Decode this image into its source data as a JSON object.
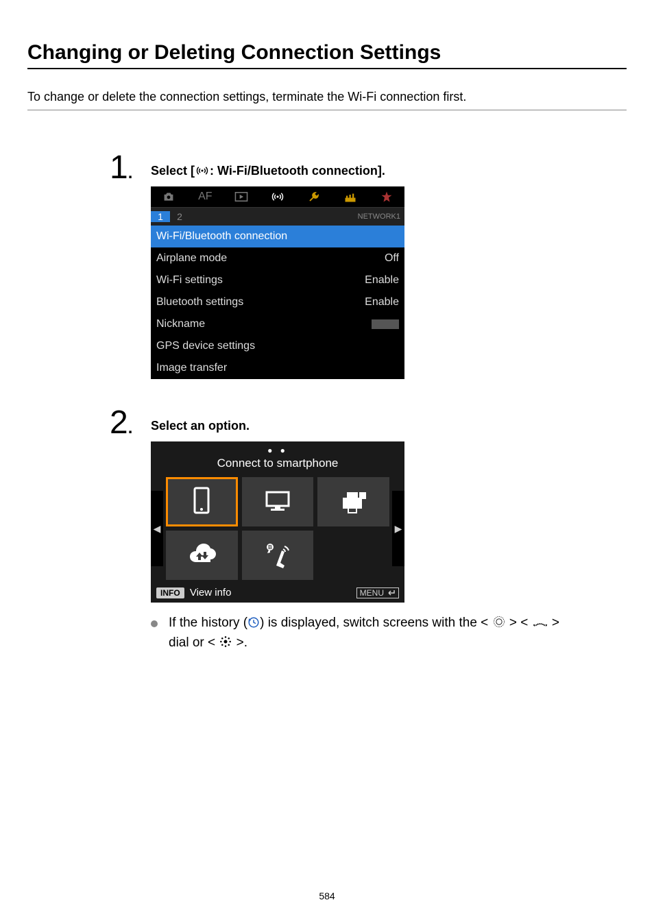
{
  "title": "Changing or Deleting Connection Settings",
  "intro": "To change or delete the connection settings, terminate the Wi-Fi connection first.",
  "step1": {
    "num": "1",
    "heading_prefix": "Select [",
    "heading_suffix": ": Wi-Fi/Bluetooth connection].",
    "screenshot": {
      "subtab": {
        "active": "1",
        "inactive": "2",
        "label": "NETWORK1"
      },
      "rows": [
        {
          "label": "Wi-Fi/Bluetooth connection",
          "value": "",
          "selected": true
        },
        {
          "label": "Airplane mode",
          "value": "Off",
          "selected": false
        },
        {
          "label": "Wi-Fi settings",
          "value": "Enable",
          "selected": false
        },
        {
          "label": "Bluetooth settings",
          "value": "Enable",
          "selected": false
        },
        {
          "label": "Nickname",
          "value": "",
          "selected": false,
          "blurred": true
        },
        {
          "label": "GPS device settings",
          "value": "",
          "selected": false
        },
        {
          "label": "Image transfer",
          "value": "",
          "selected": false
        }
      ]
    }
  },
  "step2": {
    "num": "2",
    "heading": "Select an option.",
    "screenshot": {
      "caption": "Connect to smartphone",
      "info_label": "INFO",
      "view_info": "View info",
      "menu_label": "MENU"
    },
    "note_pre": "If the history (",
    "note_mid1": ") is displayed, switch screens with the < ",
    "note_mid2": " > < ",
    "note_mid3": " >",
    "note_line2a": "dial or < ",
    "note_line2b": " >."
  },
  "pagenum": "584",
  "colors": {
    "highlight": "#2b7fd9",
    "orange": "#ff8c00",
    "link": "#2060c0"
  }
}
